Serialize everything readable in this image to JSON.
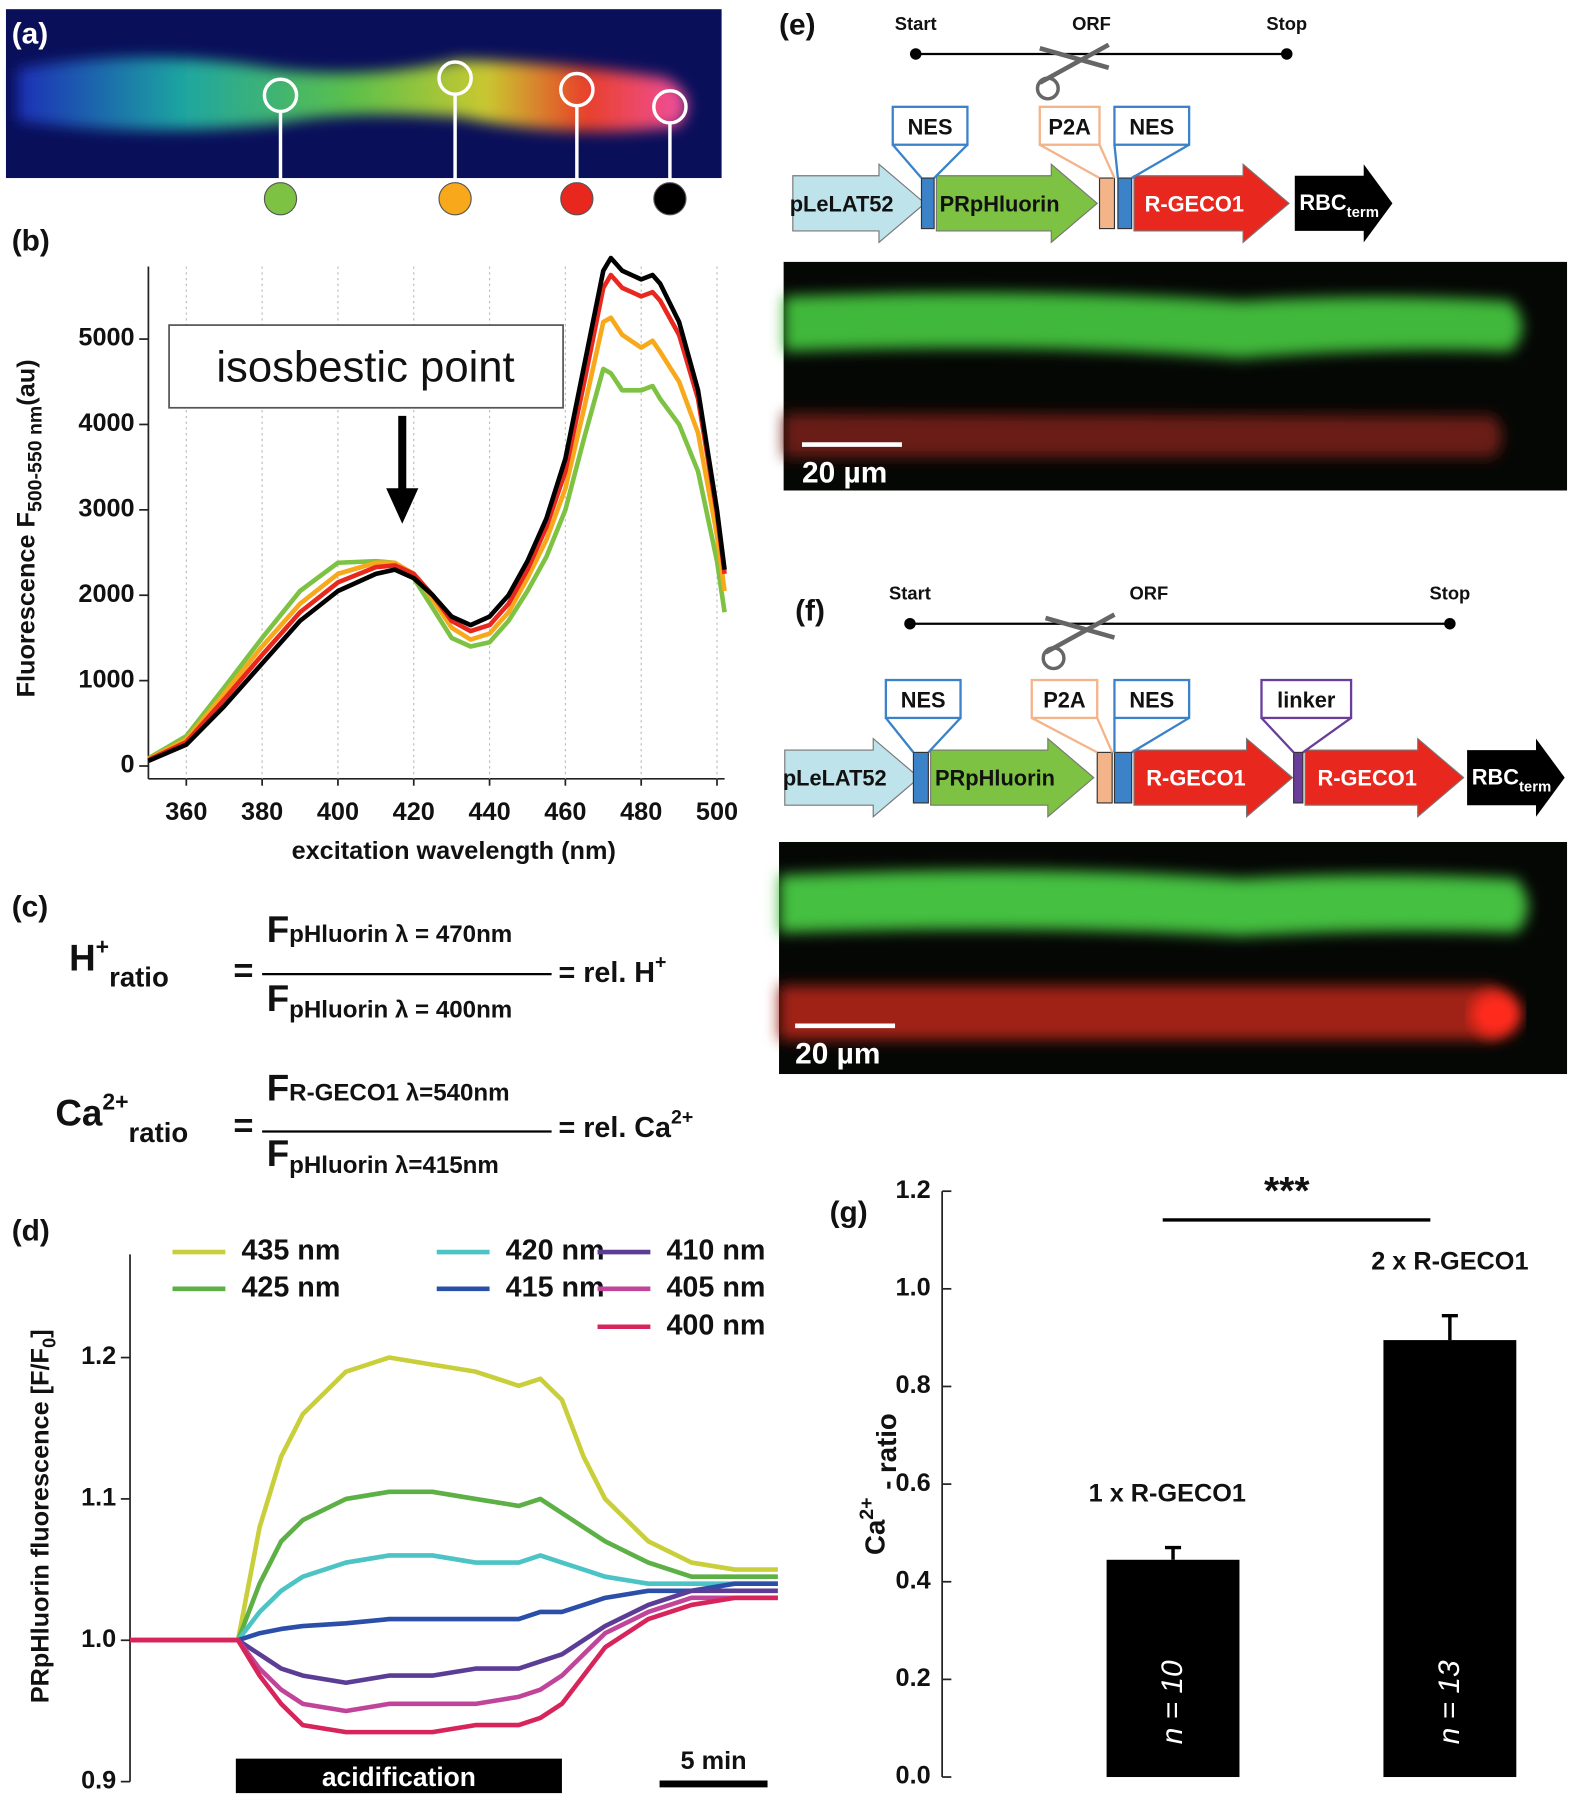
{
  "chart_data": [
    {
      "type": "line",
      "panel": "(b)",
      "ylabel": "Fluorescence F",
      "ylabel_sub": "500-550 nm",
      "ylabel_unit": "(au)",
      "xlabel": "excitation wavelength (nm)",
      "annotation": "isosbestic point",
      "x": [
        350,
        360,
        370,
        380,
        390,
        400,
        410,
        415,
        420,
        425,
        430,
        435,
        440,
        445,
        450,
        455,
        460,
        465,
        470,
        472,
        475,
        480,
        483,
        485,
        490,
        495,
        500,
        502
      ],
      "series": [
        {
          "color": "#7dc242",
          "values": [
            90,
            350,
            920,
            1500,
            2050,
            2380,
            2400,
            2380,
            2200,
            1850,
            1500,
            1400,
            1450,
            1700,
            2050,
            2450,
            3000,
            3850,
            4650,
            4600,
            4400,
            4400,
            4450,
            4300,
            4000,
            3450,
            2400,
            1800
          ]
        },
        {
          "color": "#f7a81b",
          "values": [
            80,
            310,
            850,
            1400,
            1900,
            2250,
            2380,
            2380,
            2250,
            1950,
            1620,
            1480,
            1550,
            1800,
            2200,
            2650,
            3250,
            4200,
            5200,
            5250,
            5050,
            4900,
            4980,
            4850,
            4500,
            3900,
            2700,
            2050
          ]
        },
        {
          "color": "#e8281e",
          "values": [
            70,
            280,
            780,
            1300,
            1800,
            2150,
            2330,
            2350,
            2250,
            2000,
            1700,
            1580,
            1650,
            1900,
            2300,
            2800,
            3450,
            4500,
            5600,
            5750,
            5600,
            5500,
            5550,
            5450,
            5050,
            4300,
            2950,
            2250
          ]
        },
        {
          "color": "#000000",
          "values": [
            60,
            250,
            700,
            1200,
            1700,
            2050,
            2250,
            2300,
            2200,
            2000,
            1750,
            1650,
            1750,
            2000,
            2400,
            2900,
            3600,
            4700,
            5800,
            5950,
            5800,
            5700,
            5750,
            5650,
            5200,
            4400,
            3000,
            2300
          ]
        }
      ],
      "xlim": [
        350,
        502
      ],
      "xticks": [
        360,
        380,
        400,
        420,
        440,
        460,
        480,
        500
      ],
      "ylim": [
        -150,
        5850
      ],
      "yticks": [
        0,
        1000,
        2000,
        3000,
        4000,
        5000
      ],
      "grid": "x"
    },
    {
      "type": "line",
      "panel": "(d)",
      "ylabel": "PRpHluorin fluorescence [F/F",
      "ylabel_sub": "0",
      "ylabel_end": "]",
      "x": [
        0,
        2,
        4,
        5,
        6,
        7,
        8,
        10,
        12,
        14,
        16,
        18,
        19,
        20,
        21,
        22,
        24,
        26,
        28,
        30
      ],
      "series": [
        {
          "name": "435 nm",
          "color": "#c9cf3a",
          "values": [
            1.0,
            1.0,
            1.0,
            1.0,
            1.08,
            1.13,
            1.16,
            1.19,
            1.2,
            1.195,
            1.19,
            1.18,
            1.185,
            1.17,
            1.13,
            1.1,
            1.07,
            1.055,
            1.05,
            1.05
          ]
        },
        {
          "name": "425 nm",
          "color": "#5cb045",
          "values": [
            1.0,
            1.0,
            1.0,
            1.0,
            1.04,
            1.07,
            1.085,
            1.1,
            1.105,
            1.105,
            1.1,
            1.095,
            1.1,
            1.09,
            1.08,
            1.07,
            1.055,
            1.045,
            1.045,
            1.045
          ]
        },
        {
          "name": "420 nm",
          "color": "#4cc3c4",
          "values": [
            1.0,
            1.0,
            1.0,
            1.0,
            1.02,
            1.035,
            1.045,
            1.055,
            1.06,
            1.06,
            1.055,
            1.055,
            1.06,
            1.055,
            1.05,
            1.045,
            1.04,
            1.04,
            1.04,
            1.04
          ]
        },
        {
          "name": "415 nm",
          "color": "#2b4fa8",
          "values": [
            1.0,
            1.0,
            1.0,
            1.0,
            1.005,
            1.008,
            1.01,
            1.012,
            1.015,
            1.015,
            1.015,
            1.015,
            1.02,
            1.02,
            1.025,
            1.03,
            1.035,
            1.035,
            1.04,
            1.04
          ]
        },
        {
          "name": "410 nm",
          "color": "#5b3d96",
          "values": [
            1.0,
            1.0,
            1.0,
            1.0,
            0.99,
            0.98,
            0.975,
            0.97,
            0.975,
            0.975,
            0.98,
            0.98,
            0.985,
            0.99,
            1.0,
            1.01,
            1.025,
            1.035,
            1.035,
            1.035
          ]
        },
        {
          "name": "405 nm",
          "color": "#c0459a",
          "values": [
            1.0,
            1.0,
            1.0,
            1.0,
            0.98,
            0.965,
            0.955,
            0.95,
            0.955,
            0.955,
            0.955,
            0.96,
            0.965,
            0.975,
            0.99,
            1.005,
            1.02,
            1.03,
            1.03,
            1.03
          ]
        },
        {
          "name": "400 nm",
          "color": "#d7245a",
          "values": [
            1.0,
            1.0,
            1.0,
            1.0,
            0.975,
            0.955,
            0.94,
            0.935,
            0.935,
            0.935,
            0.94,
            0.94,
            0.945,
            0.955,
            0.975,
            0.995,
            1.015,
            1.025,
            1.03,
            1.03
          ]
        }
      ],
      "xlim": [
        0,
        30
      ],
      "ylim": [
        0.9,
        1.273
      ],
      "yticks": [
        0.9,
        {
          "value": 1.0,
          "label": "1.0"
        },
        1.1,
        1.2
      ],
      "acidification": {
        "label": "acidification",
        "start": 4.9,
        "end": 20
      },
      "scalebar": {
        "label": "5 min",
        "length": 5
      }
    },
    {
      "type": "bar",
      "panel": "(g)",
      "ylabel": "Ca",
      "ylabel_sup": "2+",
      "ylabel_end": " - ratio",
      "categories": [
        "1 x R-GECO1",
        "2 x R-GECO1"
      ],
      "values": [
        0.445,
        0.895
      ],
      "errors": [
        0.025,
        0.05
      ],
      "n_labels": [
        "n = 10",
        "n = 13"
      ],
      "significance": "***",
      "color": "#000000",
      "ylim": [
        0,
        1.2
      ],
      "yticks": [
        {
          "value": 0,
          "label": "0.0"
        },
        0.2,
        0.4,
        0.6,
        0.8,
        {
          "value": 1,
          "label": "1.0"
        },
        1.2
      ]
    }
  ],
  "panel_a": {
    "panel": "(a)"
  },
  "panel_c": {
    "panel": "(c)",
    "equations": [
      {
        "lhs": "H",
        "lhs_sup": "+",
        "lhs_tail": "ratio",
        "eq": "=",
        "num": "F",
        "num_sub": "pHluorin λ = 470nm",
        "den": "F",
        "den_sub": "pHluorin λ = 400nm",
        "rhs": "= rel. H",
        "rhs_sup": "+"
      },
      {
        "lhs": "Ca",
        "lhs_sup": "2+",
        "lhs_tail": "ratio",
        "eq": "=",
        "num": "F",
        "num_sub": "R-GECO1 λ=540nm",
        "den": "F",
        "den_sub": "pHluorin λ=415nm",
        "rhs": "= rel. Ca",
        "rhs_sup": "2+"
      }
    ]
  },
  "panel_e": {
    "panel": "(e)",
    "orf": [
      "Start",
      "ORF",
      "Stop"
    ],
    "tags": [
      "NES",
      "P2A",
      "NES"
    ],
    "parts": [
      "pLeLAT52",
      "PRpHluorin",
      "R-GECO1"
    ],
    "terminator": "RBC",
    "terminator_sub": "term",
    "scalebar": "20 µm"
  },
  "panel_f": {
    "panel": "(f)",
    "orf": [
      "Start",
      "ORF",
      "Stop"
    ],
    "tags": [
      "NES",
      "P2A",
      "NES",
      "linker"
    ],
    "parts": [
      "pLeLAT52",
      "PRpHluorin",
      "R-GECO1",
      "R-GECO1"
    ],
    "terminator": "RBC",
    "terminator_sub": "term",
    "scalebar": "20 µm"
  }
}
